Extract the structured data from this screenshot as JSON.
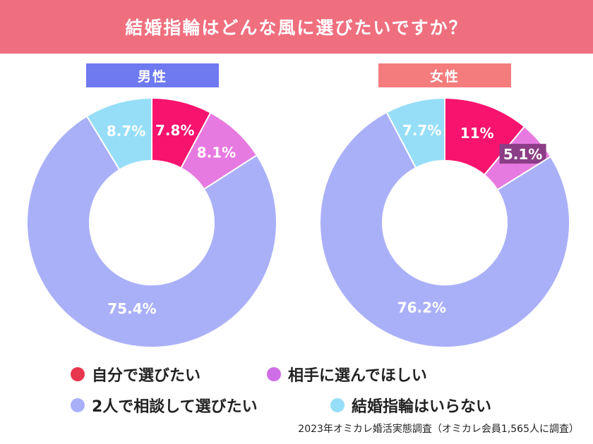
{
  "header": {
    "title": "結婚指輪はどんな風に選びたいですか？"
  },
  "colors": {
    "header": "#ef6f7e",
    "male_label": "#6f7af0",
    "female_label": "#f47c7c",
    "self": "#f7136e",
    "partner": "#e77ae0",
    "together": "#aab0f8",
    "none": "#96def8",
    "legend_self": "#e8364e",
    "legend_partner": "#cf6de6",
    "legend_together": "#aab0f8",
    "legend_none": "#96def8"
  },
  "legend": {
    "self": "自分で選びたい",
    "partner": "相手に選んでほしい",
    "together": "2人で相談して選びたい",
    "none": "結婚指輪はいらない"
  },
  "source": "2023年オミカレ婚活実態調査（オミカレ会員1,565人に調査）",
  "chart_data": [
    {
      "type": "pie",
      "title": "男性",
      "categories": [
        "自分で選びたい",
        "相手に選んでほしい",
        "2人で相談して選びたい",
        "結婚指輪はいらない"
      ],
      "values": [
        7.8,
        8.1,
        75.4,
        8.7
      ],
      "labels": [
        "7.8%",
        "8.1%",
        "75.4%",
        "8.7%"
      ]
    },
    {
      "type": "pie",
      "title": "女性",
      "categories": [
        "自分で選びたい",
        "相手に選んでほしい",
        "2人で相談して選びたい",
        "結婚指輪はいらない"
      ],
      "values": [
        11,
        5.1,
        76.2,
        7.7
      ],
      "labels": [
        "11%",
        "5.1%",
        "76.2%",
        "7.7%"
      ]
    }
  ]
}
